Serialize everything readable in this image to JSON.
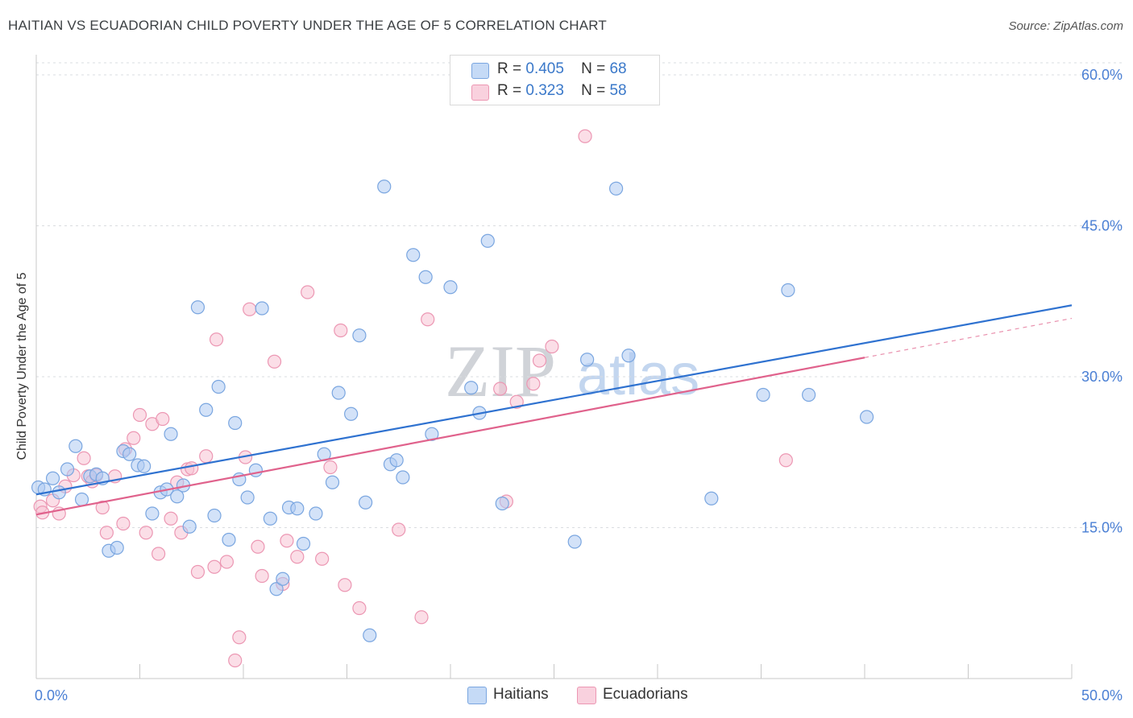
{
  "header": {
    "title": "HAITIAN VS ECUADORIAN CHILD POVERTY UNDER THE AGE OF 5 CORRELATION CHART",
    "source": "Source: ZipAtlas.com"
  },
  "legend_top": {
    "rows": [
      {
        "r_label": "R =",
        "r_value": "0.405",
        "n_label": "N =",
        "n_value": "68"
      },
      {
        "r_label": "R =",
        "r_value": "0.323",
        "n_label": "N =",
        "n_value": "58"
      }
    ]
  },
  "legend_bottom": {
    "items": [
      "Haitians",
      "Ecuadorians"
    ]
  },
  "watermark": {
    "zip": "ZIP",
    "atlas": "atlas"
  },
  "colors": {
    "haitian_fill": "#aecbf2",
    "haitian_stroke": "#7aa6e0",
    "haitian_line": "#2f72d0",
    "ecuadorian_fill": "#f8c3d3",
    "ecuadorian_stroke": "#ec97b3",
    "ecuadorian_line": "#e0628c"
  },
  "chart_data": {
    "type": "scatter",
    "title": "HAITIAN VS ECUADORIAN CHILD POVERTY UNDER THE AGE OF 5 CORRELATION CHART",
    "xlabel": "",
    "ylabel": "Child Poverty Under the Age of 5",
    "xlim": [
      0,
      50
    ],
    "ylim": [
      0,
      62
    ],
    "x_tick_labels": [
      "0.0%",
      "50.0%"
    ],
    "y_ticks": [
      15,
      30,
      45,
      60
    ],
    "y_tick_labels": [
      "15.0%",
      "30.0%",
      "45.0%",
      "60.0%"
    ],
    "series": [
      {
        "name": "Haitians",
        "R": 0.405,
        "N": 68,
        "trend": {
          "x": [
            0,
            50
          ],
          "y": [
            18.3,
            37.1
          ]
        },
        "points": [
          [
            0.1,
            19.0
          ],
          [
            0.4,
            18.8
          ],
          [
            0.8,
            19.9
          ],
          [
            1.1,
            18.5
          ],
          [
            1.5,
            20.8
          ],
          [
            1.9,
            23.1
          ],
          [
            2.2,
            17.8
          ],
          [
            2.6,
            20.1
          ],
          [
            2.9,
            20.3
          ],
          [
            3.2,
            19.9
          ],
          [
            3.5,
            12.7
          ],
          [
            3.9,
            13.0
          ],
          [
            4.2,
            22.6
          ],
          [
            4.5,
            22.3
          ],
          [
            4.9,
            21.2
          ],
          [
            5.2,
            21.1
          ],
          [
            5.6,
            16.4
          ],
          [
            6.0,
            18.5
          ],
          [
            6.3,
            18.8
          ],
          [
            6.5,
            24.3
          ],
          [
            6.8,
            18.1
          ],
          [
            7.1,
            19.2
          ],
          [
            7.4,
            15.1
          ],
          [
            7.8,
            36.9
          ],
          [
            8.2,
            26.7
          ],
          [
            8.6,
            16.2
          ],
          [
            8.8,
            29.0
          ],
          [
            9.3,
            13.8
          ],
          [
            9.6,
            25.4
          ],
          [
            9.8,
            19.8
          ],
          [
            10.2,
            18.0
          ],
          [
            10.6,
            20.7
          ],
          [
            10.9,
            36.8
          ],
          [
            11.3,
            15.9
          ],
          [
            11.6,
            8.9
          ],
          [
            11.9,
            9.9
          ],
          [
            12.2,
            17.0
          ],
          [
            12.6,
            16.9
          ],
          [
            12.9,
            13.4
          ],
          [
            13.5,
            16.4
          ],
          [
            13.9,
            22.3
          ],
          [
            14.3,
            19.5
          ],
          [
            14.6,
            28.4
          ],
          [
            15.2,
            26.3
          ],
          [
            15.6,
            34.1
          ],
          [
            15.9,
            17.5
          ],
          [
            16.1,
            4.3
          ],
          [
            16.8,
            48.9
          ],
          [
            17.1,
            21.3
          ],
          [
            17.4,
            21.7
          ],
          [
            17.7,
            20.0
          ],
          [
            18.2,
            42.1
          ],
          [
            18.8,
            39.9
          ],
          [
            19.1,
            24.3
          ],
          [
            20.0,
            38.9
          ],
          [
            21.0,
            28.9
          ],
          [
            21.4,
            26.4
          ],
          [
            21.8,
            43.5
          ],
          [
            22.5,
            17.4
          ],
          [
            26.0,
            13.6
          ],
          [
            26.6,
            31.7
          ],
          [
            28.0,
            48.7
          ],
          [
            28.6,
            32.1
          ],
          [
            32.6,
            17.9
          ],
          [
            35.1,
            28.2
          ],
          [
            36.3,
            38.6
          ],
          [
            37.3,
            28.2
          ],
          [
            40.1,
            26.0
          ]
        ]
      },
      {
        "name": "Ecuadorians",
        "R": 0.323,
        "N": 58,
        "trend": {
          "x": [
            0,
            40
          ],
          "y": [
            16.3,
            31.9
          ]
        },
        "trend_extension": {
          "x": [
            40,
            50
          ],
          "y": [
            31.9,
            35.8
          ]
        },
        "points": [
          [
            0.2,
            17.1
          ],
          [
            0.3,
            16.5
          ],
          [
            0.8,
            17.7
          ],
          [
            1.1,
            16.4
          ],
          [
            1.4,
            19.1
          ],
          [
            1.8,
            20.2
          ],
          [
            2.3,
            21.9
          ],
          [
            2.5,
            20.1
          ],
          [
            2.7,
            19.6
          ],
          [
            2.9,
            20.2
          ],
          [
            3.2,
            17.0
          ],
          [
            3.4,
            14.5
          ],
          [
            3.8,
            20.1
          ],
          [
            4.2,
            15.4
          ],
          [
            4.3,
            22.8
          ],
          [
            4.7,
            23.9
          ],
          [
            5.0,
            26.2
          ],
          [
            5.3,
            14.5
          ],
          [
            5.6,
            25.3
          ],
          [
            5.9,
            12.4
          ],
          [
            6.1,
            25.8
          ],
          [
            6.5,
            15.9
          ],
          [
            6.8,
            19.5
          ],
          [
            7.0,
            14.5
          ],
          [
            7.3,
            20.8
          ],
          [
            7.5,
            20.9
          ],
          [
            7.8,
            10.6
          ],
          [
            8.2,
            22.1
          ],
          [
            8.6,
            11.1
          ],
          [
            8.7,
            33.7
          ],
          [
            9.2,
            11.6
          ],
          [
            9.6,
            1.8
          ],
          [
            9.8,
            4.1
          ],
          [
            10.1,
            22.0
          ],
          [
            10.3,
            36.7
          ],
          [
            10.7,
            13.1
          ],
          [
            10.9,
            10.2
          ],
          [
            11.5,
            31.5
          ],
          [
            11.9,
            9.4
          ],
          [
            12.1,
            13.7
          ],
          [
            12.6,
            12.1
          ],
          [
            13.1,
            38.4
          ],
          [
            13.8,
            11.9
          ],
          [
            14.2,
            21.0
          ],
          [
            14.7,
            34.6
          ],
          [
            14.9,
            9.3
          ],
          [
            15.6,
            7.0
          ],
          [
            17.5,
            14.8
          ],
          [
            18.6,
            6.1
          ],
          [
            18.9,
            35.7
          ],
          [
            22.4,
            28.8
          ],
          [
            22.7,
            17.6
          ],
          [
            23.2,
            27.5
          ],
          [
            24.0,
            29.3
          ],
          [
            24.3,
            31.6
          ],
          [
            24.9,
            33.0
          ],
          [
            26.5,
            53.9
          ],
          [
            36.2,
            21.7
          ]
        ]
      }
    ]
  }
}
